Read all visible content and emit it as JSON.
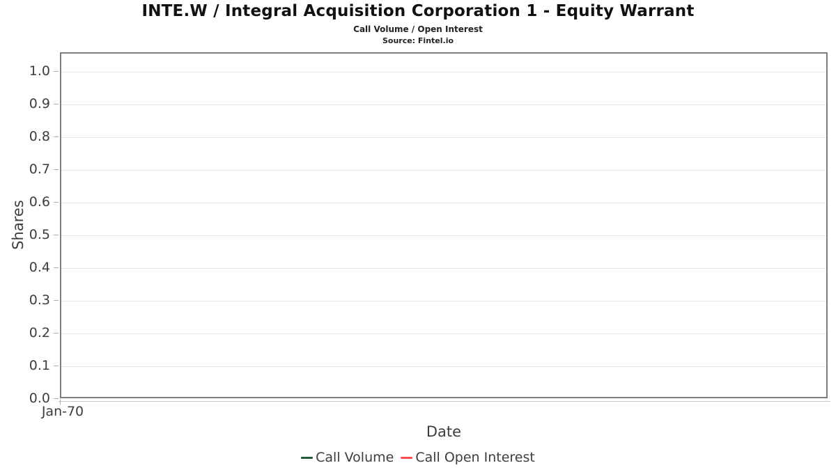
{
  "header": {
    "title": "INTE.W / Integral Acquisition Corporation 1 - Equity Warrant",
    "subtitle": "Call Volume / Open Interest",
    "source": "Source: Fintel.io"
  },
  "chart_data": {
    "type": "line",
    "title": "INTE.W / Integral Acquisition Corporation 1 - Equity Warrant",
    "subtitle": "Call Volume / Open Interest",
    "source": "Source: Fintel.io",
    "xlabel": "Date",
    "ylabel": "Shares",
    "x_ticks": [
      "Jan-70"
    ],
    "y_ticks": [
      "0.0",
      "0.1",
      "0.2",
      "0.3",
      "0.4",
      "0.5",
      "0.6",
      "0.7",
      "0.8",
      "0.9",
      "1.0"
    ],
    "ylim": [
      0.0,
      1.06
    ],
    "grid": "horizontal",
    "legend_position": "bottom",
    "series": [
      {
        "name": "Call Volume",
        "color": "#1f5c3a",
        "x": [],
        "values": []
      },
      {
        "name": "Call Open Interest",
        "color": "#fb4f4f",
        "x": [],
        "values": []
      }
    ]
  },
  "colors": {
    "plot_border": "#7e7e7e",
    "gridline": "#e6e6e6",
    "text": "#3d3d3d"
  }
}
